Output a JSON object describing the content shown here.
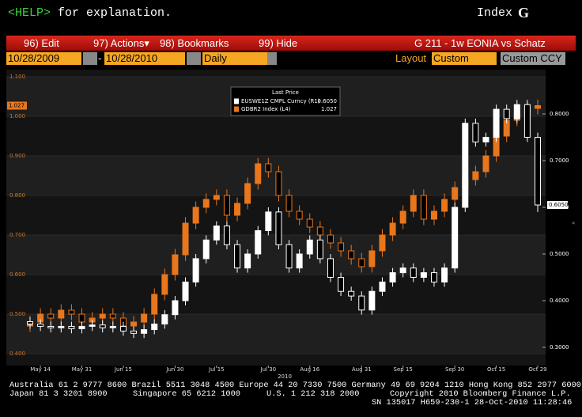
{
  "header": {
    "help_key": "<HELP>",
    "help_text": "for explanation.",
    "mode": "Index",
    "mode_key": "G"
  },
  "menu": {
    "items": [
      "96) Edit",
      "97) Actions▾",
      "98) Bookmarks",
      "99) Hide"
    ],
    "title": "G 211 - 1w EONIA vs Schatz"
  },
  "toolbar": {
    "start_date": "10/28/2009",
    "separator": "-",
    "end_date": "10/28/2010",
    "period": "Daily",
    "layout_label": "Layout",
    "layout": "Custom",
    "currency": "Custom CCY"
  },
  "chart_data": {
    "type": "candlestick",
    "legend_title": "Last Price",
    "x_label": "2010",
    "categories": [
      null,
      "May 14",
      null,
      null,
      null,
      "May 31",
      null,
      null,
      null,
      "Jun 15",
      null,
      null,
      null,
      null,
      "Jun 30",
      null,
      null,
      null,
      "Jul 15",
      null,
      null,
      null,
      null,
      "Jul 30",
      null,
      null,
      null,
      "Aug 16",
      null,
      null,
      null,
      null,
      "Aug 31",
      null,
      null,
      null,
      "Sep 15",
      null,
      null,
      null,
      null,
      "Sep 30",
      null,
      null,
      null,
      "Oct 15",
      null,
      null,
      null,
      "Oct 29"
    ],
    "ylim": [
      0.4,
      1.1
    ],
    "yticks": [
      {
        "value": 0.4,
        "label": "0.400"
      },
      {
        "value": 0.5,
        "label": "0.500"
      },
      {
        "value": 0.6,
        "label": "0.600"
      },
      {
        "value": 0.7,
        "label": "0.700"
      },
      {
        "value": 0.8,
        "label": "0.800"
      },
      {
        "value": 0.9,
        "label": "0.900"
      },
      {
        "value": 1.0,
        "label": "1.000"
      },
      {
        "value": 1.1,
        "label": "1.100"
      }
    ],
    "y2lim": [
      0.3,
      0.9
    ],
    "y2ticks": [
      {
        "value": 0.3,
        "label": "0.3000"
      },
      {
        "value": 0.4,
        "label": "0.4000"
      },
      {
        "value": 0.5,
        "label": "0.5000"
      },
      {
        "value": 0.6,
        "label": "0.6000"
      },
      {
        "value": 0.7,
        "label": "0.7000"
      },
      {
        "value": 0.8,
        "label": "0.8000"
      }
    ],
    "series": [
      {
        "name": "GDBR2 Index  (L4)",
        "color": "#e8761c",
        "axis": "y",
        "last_label": "1.027",
        "open": [
          0.47,
          0.48,
          0.5,
          0.49,
          0.51,
          0.5,
          0.48,
          0.49,
          0.5,
          0.49,
          0.47,
          0.48,
          0.5,
          0.55,
          0.6,
          0.65,
          0.73,
          0.77,
          0.79,
          0.8,
          0.75,
          0.78,
          0.83,
          0.88,
          0.86,
          0.8,
          0.76,
          0.74,
          0.72,
          0.7,
          0.68,
          0.66,
          0.64,
          0.62,
          0.66,
          0.7,
          0.73,
          0.76,
          0.8,
          0.74,
          0.76,
          0.79,
          0.82,
          0.84,
          0.86,
          0.9,
          0.95,
          0.99,
          1.01,
          1.02
        ],
        "high": [
          0.495,
          0.515,
          0.515,
          0.525,
          0.525,
          0.515,
          0.505,
          0.515,
          0.515,
          0.505,
          0.495,
          0.515,
          0.565,
          0.615,
          0.665,
          0.745,
          0.785,
          0.805,
          0.815,
          0.815,
          0.795,
          0.845,
          0.895,
          0.895,
          0.875,
          0.815,
          0.775,
          0.755,
          0.735,
          0.715,
          0.695,
          0.675,
          0.655,
          0.675,
          0.715,
          0.745,
          0.775,
          0.815,
          0.815,
          0.775,
          0.805,
          0.835,
          0.855,
          0.875,
          0.915,
          0.965,
          1.005,
          1.025,
          1.035,
          1.042
        ],
        "low": [
          0.455,
          0.465,
          0.475,
          0.475,
          0.485,
          0.465,
          0.465,
          0.475,
          0.475,
          0.455,
          0.455,
          0.465,
          0.485,
          0.535,
          0.585,
          0.635,
          0.715,
          0.755,
          0.775,
          0.735,
          0.735,
          0.765,
          0.815,
          0.845,
          0.785,
          0.745,
          0.725,
          0.705,
          0.685,
          0.665,
          0.645,
          0.625,
          0.605,
          0.605,
          0.645,
          0.685,
          0.715,
          0.745,
          0.725,
          0.725,
          0.745,
          0.775,
          0.805,
          0.825,
          0.845,
          0.885,
          0.935,
          0.975,
          0.995,
          1.005
        ],
        "close": [
          0.48,
          0.5,
          0.49,
          0.51,
          0.5,
          0.48,
          0.49,
          0.5,
          0.49,
          0.47,
          0.48,
          0.5,
          0.55,
          0.6,
          0.65,
          0.73,
          0.77,
          0.79,
          0.8,
          0.75,
          0.78,
          0.83,
          0.88,
          0.86,
          0.8,
          0.76,
          0.74,
          0.72,
          0.7,
          0.68,
          0.66,
          0.64,
          0.62,
          0.66,
          0.7,
          0.73,
          0.76,
          0.8,
          0.74,
          0.76,
          0.79,
          0.82,
          0.84,
          0.86,
          0.9,
          0.95,
          0.99,
          1.01,
          1.02,
          1.027
        ]
      },
      {
        "name": "EUSWE1Z CMPL Curncy  (R1)",
        "color": "#ffffff",
        "axis": "y2",
        "last_label": "0.6050",
        "open": [
          0.355,
          0.35,
          0.345,
          0.342,
          0.345,
          0.34,
          0.345,
          0.348,
          0.342,
          0.345,
          0.335,
          0.33,
          0.338,
          0.35,
          0.37,
          0.4,
          0.44,
          0.49,
          0.53,
          0.56,
          0.52,
          0.47,
          0.5,
          0.55,
          0.59,
          0.52,
          0.47,
          0.5,
          0.53,
          0.49,
          0.45,
          0.42,
          0.41,
          0.38,
          0.42,
          0.44,
          0.46,
          0.47,
          0.45,
          0.46,
          0.44,
          0.47,
          0.6,
          0.78,
          0.74,
          0.75,
          0.81,
          0.79,
          0.82,
          0.75
        ],
        "high": [
          0.365,
          0.36,
          0.355,
          0.355,
          0.355,
          0.355,
          0.358,
          0.358,
          0.355,
          0.355,
          0.345,
          0.348,
          0.36,
          0.38,
          0.41,
          0.45,
          0.5,
          0.54,
          0.57,
          0.57,
          0.53,
          0.51,
          0.56,
          0.6,
          0.6,
          0.53,
          0.51,
          0.54,
          0.54,
          0.5,
          0.46,
          0.43,
          0.42,
          0.43,
          0.45,
          0.47,
          0.48,
          0.48,
          0.47,
          0.47,
          0.48,
          0.61,
          0.79,
          0.79,
          0.76,
          0.82,
          0.82,
          0.83,
          0.83,
          0.76
        ],
        "low": [
          0.34,
          0.335,
          0.332,
          0.332,
          0.33,
          0.33,
          0.335,
          0.332,
          0.332,
          0.325,
          0.32,
          0.32,
          0.328,
          0.34,
          0.36,
          0.39,
          0.43,
          0.48,
          0.52,
          0.51,
          0.46,
          0.46,
          0.49,
          0.54,
          0.51,
          0.46,
          0.46,
          0.49,
          0.48,
          0.44,
          0.41,
          0.4,
          0.37,
          0.37,
          0.41,
          0.43,
          0.45,
          0.44,
          0.44,
          0.43,
          0.43,
          0.46,
          0.59,
          0.73,
          0.73,
          0.74,
          0.78,
          0.78,
          0.74,
          0.59
        ],
        "close": [
          0.35,
          0.345,
          0.342,
          0.345,
          0.34,
          0.345,
          0.348,
          0.342,
          0.345,
          0.335,
          0.33,
          0.338,
          0.35,
          0.37,
          0.4,
          0.44,
          0.49,
          0.53,
          0.56,
          0.52,
          0.47,
          0.5,
          0.55,
          0.59,
          0.52,
          0.47,
          0.5,
          0.53,
          0.49,
          0.45,
          0.42,
          0.41,
          0.38,
          0.42,
          0.44,
          0.46,
          0.47,
          0.45,
          0.46,
          0.44,
          0.47,
          0.6,
          0.78,
          0.74,
          0.75,
          0.81,
          0.79,
          0.82,
          0.75,
          0.605
        ]
      }
    ]
  },
  "footer": {
    "line1": "Australia 61 2 9777 8600 Brazil 5511 3048 4500 Europe 44 20 7330 7500 Germany 49 69 9204 1210 Hong Kong 852 2977 6000",
    "line2": [
      "Japan 81 3 3201 8900",
      "Singapore 65 6212 1000",
      "U.S. 1 212 318 2000",
      "Copyright 2010 Bloomberg Finance L.P."
    ],
    "line3": "SN 135017 H659-230-1 28-Oct-2010 11:28:46"
  }
}
